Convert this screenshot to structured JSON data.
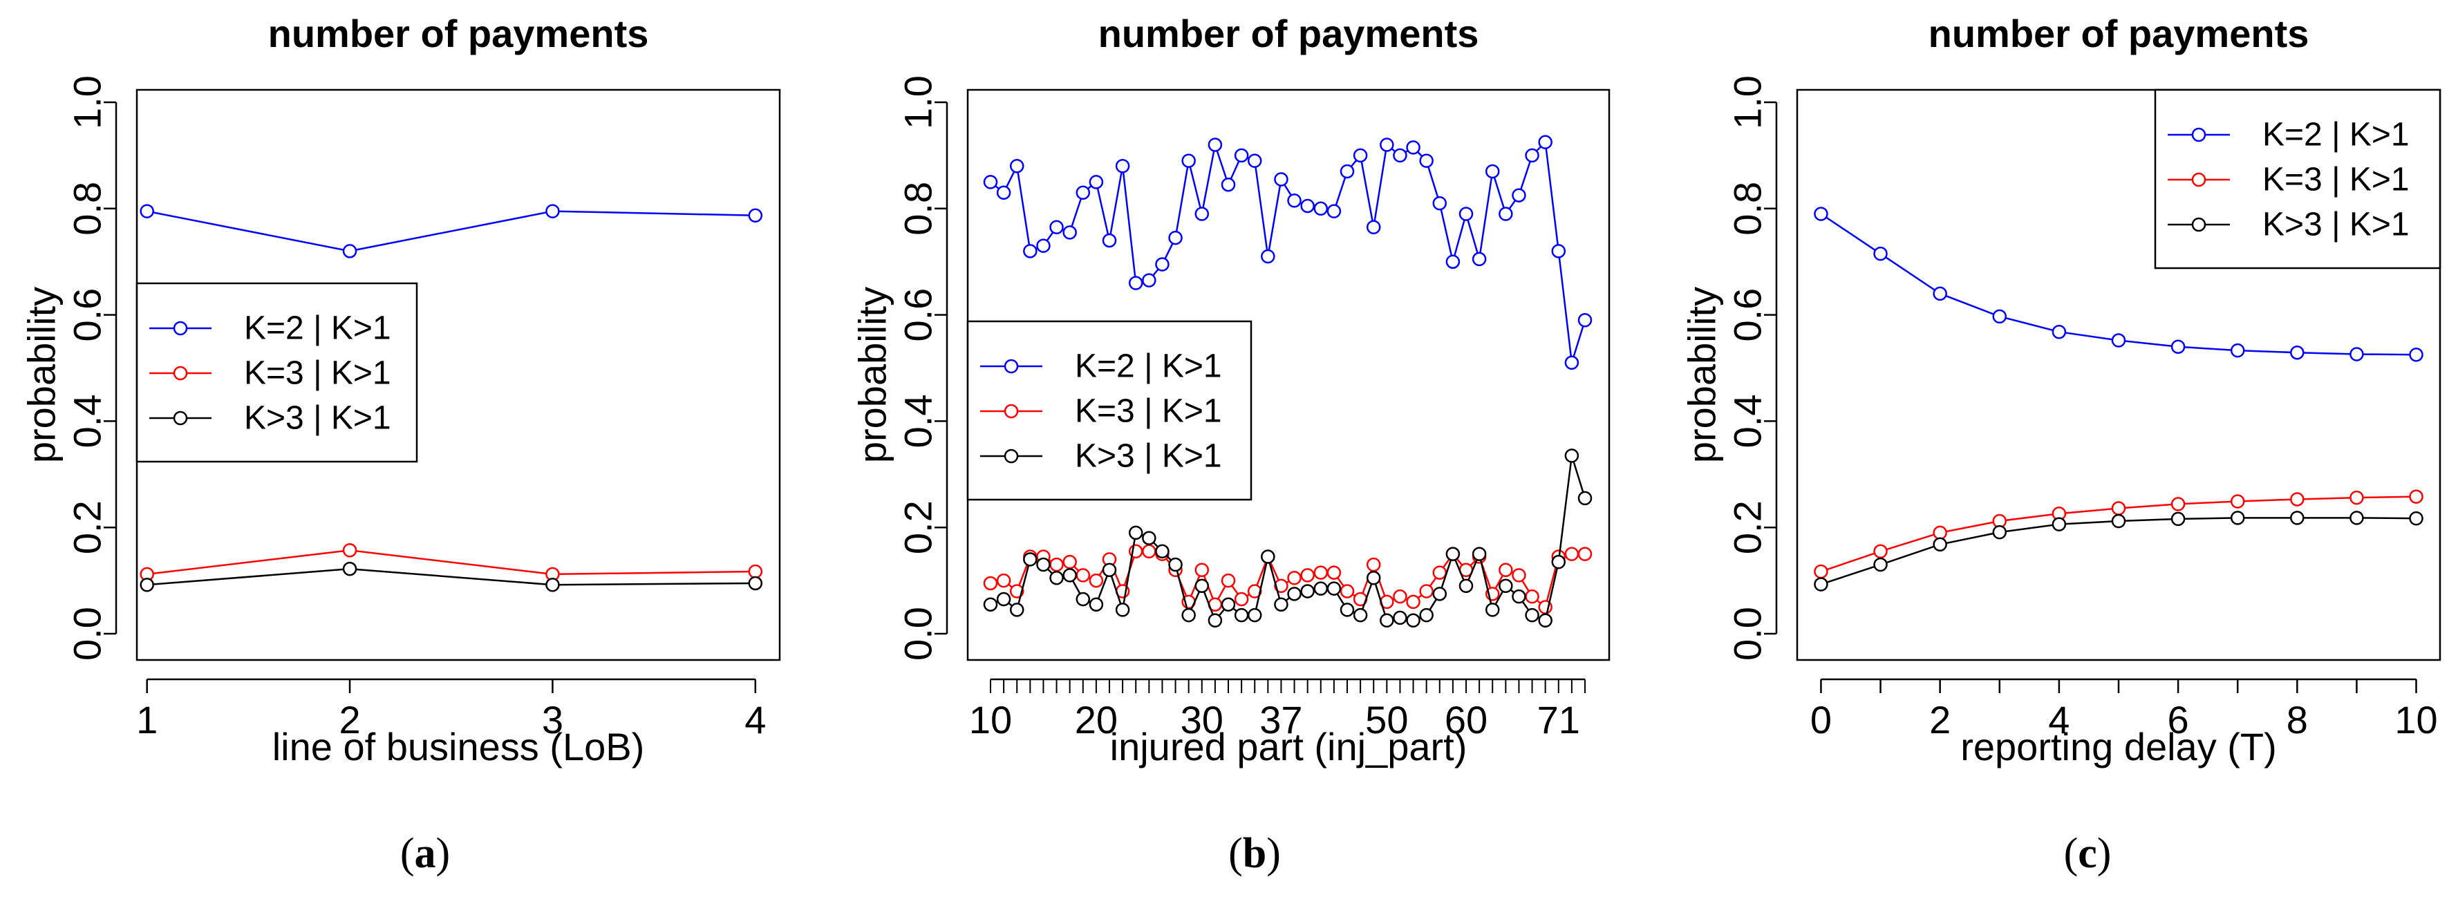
{
  "sublabels": {
    "a": "a",
    "b": "b",
    "c": "c"
  },
  "chart_data": [
    {
      "type": "line",
      "title": "number of payments",
      "xlabel": "line of business (LoB)",
      "ylabel": "probability",
      "xlim": [
        1,
        4
      ],
      "ylim": [
        0.0,
        1.0
      ],
      "x": [
        1,
        2,
        3,
        4
      ],
      "xticks": [
        "1",
        "2",
        "3",
        "4"
      ],
      "yticks": [
        "0.0",
        "0.2",
        "0.4",
        "0.6",
        "0.8",
        "1.0"
      ],
      "legend_position": "center-left",
      "series": [
        {
          "name": "K=2 | K>1",
          "color": "#0000ff",
          "values": [
            0.795,
            0.72,
            0.795,
            0.787
          ]
        },
        {
          "name": "K=3 | K>1",
          "color": "#ff0000",
          "values": [
            0.112,
            0.157,
            0.112,
            0.117
          ]
        },
        {
          "name": "K>3 | K>1",
          "color": "#000000",
          "values": [
            0.092,
            0.122,
            0.092,
            0.095
          ]
        }
      ]
    },
    {
      "type": "line",
      "title": "number of payments",
      "xlabel": "injured part (inj_part)",
      "ylabel": "probability",
      "ylim": [
        0.0,
        1.0
      ],
      "xticks": [
        "10",
        "20",
        "30",
        "37",
        "50",
        "60",
        "71"
      ],
      "yticks": [
        "0.0",
        "0.2",
        "0.4",
        "0.6",
        "0.8",
        "1.0"
      ],
      "legend_position": "center-left",
      "series": [
        {
          "name": "K=2 | K>1",
          "color": "#0000ff",
          "values": [
            0.85,
            0.83,
            0.88,
            0.72,
            0.73,
            0.765,
            0.755,
            0.83,
            0.85,
            0.74,
            0.88,
            0.66,
            0.665,
            0.695,
            0.745,
            0.89,
            0.79,
            0.92,
            0.845,
            0.9,
            0.89,
            0.71,
            0.855,
            0.815,
            0.805,
            0.8,
            0.795,
            0.87,
            0.9,
            0.765,
            0.92,
            0.9,
            0.915,
            0.89,
            0.81,
            0.7,
            0.79,
            0.705,
            0.87,
            0.79,
            0.825,
            0.9,
            0.925,
            0.72,
            0.51,
            0.59
          ]
        },
        {
          "name": "K=3 | K>1",
          "color": "#ff0000",
          "values": [
            0.095,
            0.1,
            0.08,
            0.145,
            0.145,
            0.13,
            0.135,
            0.11,
            0.1,
            0.14,
            0.08,
            0.155,
            0.155,
            0.15,
            0.12,
            0.06,
            0.12,
            0.055,
            0.1,
            0.065,
            0.08,
            0.145,
            0.09,
            0.105,
            0.11,
            0.115,
            0.115,
            0.08,
            0.065,
            0.13,
            0.06,
            0.07,
            0.06,
            0.08,
            0.115,
            0.15,
            0.12,
            0.145,
            0.075,
            0.12,
            0.11,
            0.07,
            0.05,
            0.145,
            0.15,
            0.15
          ]
        },
        {
          "name": "K>3 | K>1",
          "color": "#000000",
          "values": [
            0.055,
            0.065,
            0.045,
            0.14,
            0.13,
            0.105,
            0.11,
            0.065,
            0.055,
            0.12,
            0.045,
            0.19,
            0.18,
            0.155,
            0.13,
            0.035,
            0.09,
            0.025,
            0.055,
            0.035,
            0.035,
            0.145,
            0.055,
            0.075,
            0.08,
            0.085,
            0.085,
            0.045,
            0.035,
            0.105,
            0.025,
            0.03,
            0.025,
            0.035,
            0.075,
            0.15,
            0.09,
            0.15,
            0.045,
            0.09,
            0.07,
            0.035,
            0.025,
            0.135,
            0.335,
            0.255
          ]
        }
      ]
    },
    {
      "type": "line",
      "title": "number of payments",
      "xlabel": "reporting delay (T)",
      "ylabel": "probability",
      "xlim": [
        0,
        10
      ],
      "ylim": [
        0.0,
        1.0
      ],
      "x": [
        0,
        1,
        2,
        3,
        4,
        5,
        6,
        7,
        8,
        9,
        10
      ],
      "xticks": [
        "0",
        "2",
        "4",
        "6",
        "8",
        "10"
      ],
      "yticks": [
        "0.0",
        "0.2",
        "0.4",
        "0.6",
        "0.8",
        "1.0"
      ],
      "legend_position": "top-right",
      "series": [
        {
          "name": "K=2 | K>1",
          "color": "#0000ff",
          "values": [
            0.79,
            0.715,
            0.64,
            0.597,
            0.568,
            0.552,
            0.54,
            0.533,
            0.529,
            0.526,
            0.525
          ]
        },
        {
          "name": "K=3 | K>1",
          "color": "#ff0000",
          "values": [
            0.117,
            0.155,
            0.19,
            0.212,
            0.226,
            0.236,
            0.244,
            0.249,
            0.253,
            0.256,
            0.258
          ]
        },
        {
          "name": "K>3 | K>1",
          "color": "#000000",
          "values": [
            0.093,
            0.13,
            0.168,
            0.191,
            0.206,
            0.212,
            0.216,
            0.218,
            0.218,
            0.218,
            0.217
          ]
        }
      ]
    }
  ]
}
